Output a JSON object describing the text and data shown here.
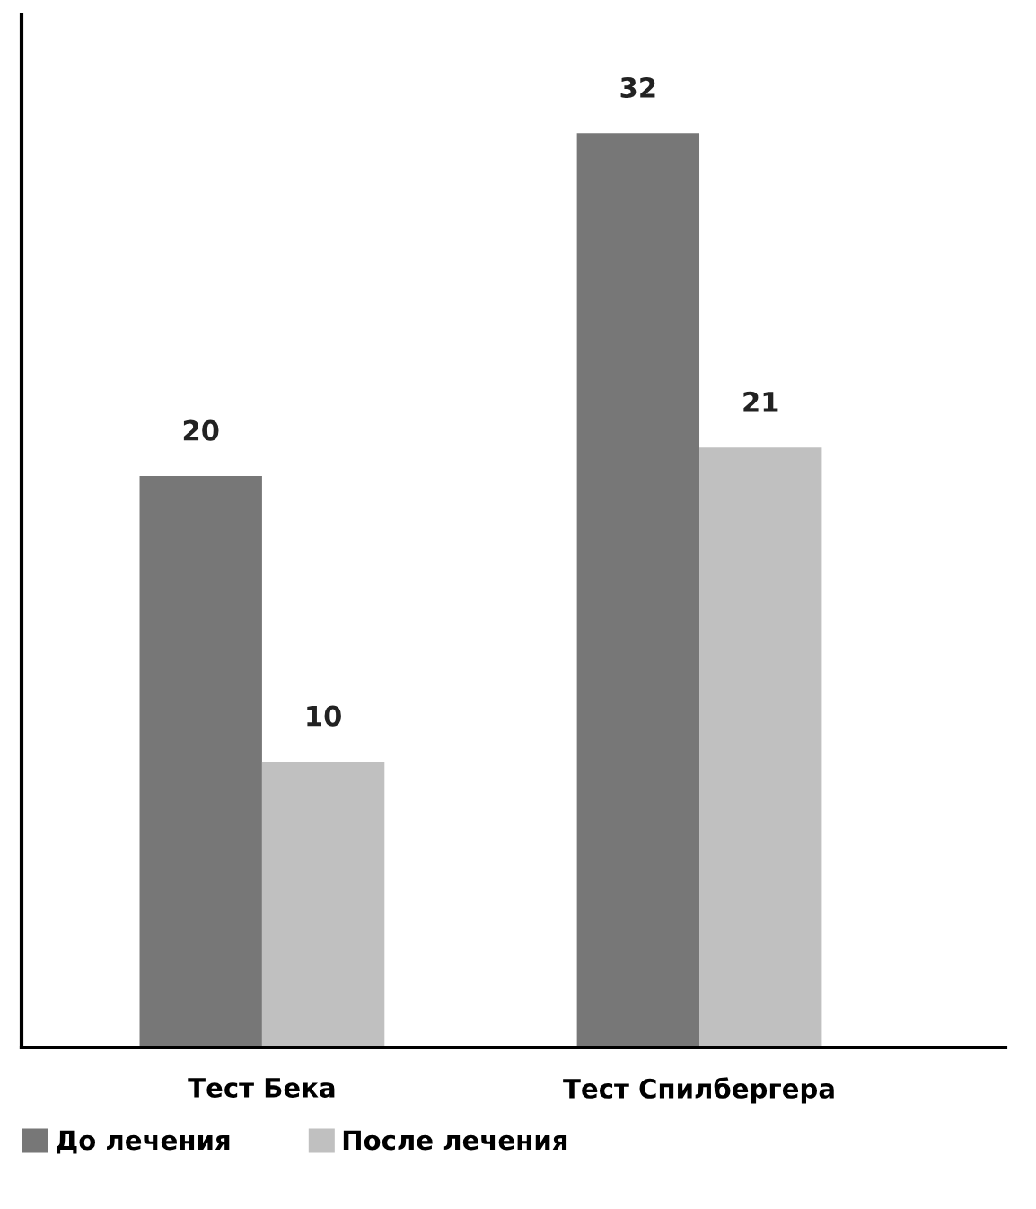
{
  "chart_data": {
    "type": "bar",
    "categories": [
      "Тест Бека",
      "Тест Спилбергера"
    ],
    "series": [
      {
        "name": "До лечения",
        "color": "#777777",
        "values": [
          20,
          32
        ]
      },
      {
        "name": "После лечения",
        "color": "#c0c0c0",
        "values": [
          10,
          21
        ]
      }
    ],
    "data_labels": true,
    "legend": "bottom left",
    "tick_labels": "x",
    "grid": false
  }
}
